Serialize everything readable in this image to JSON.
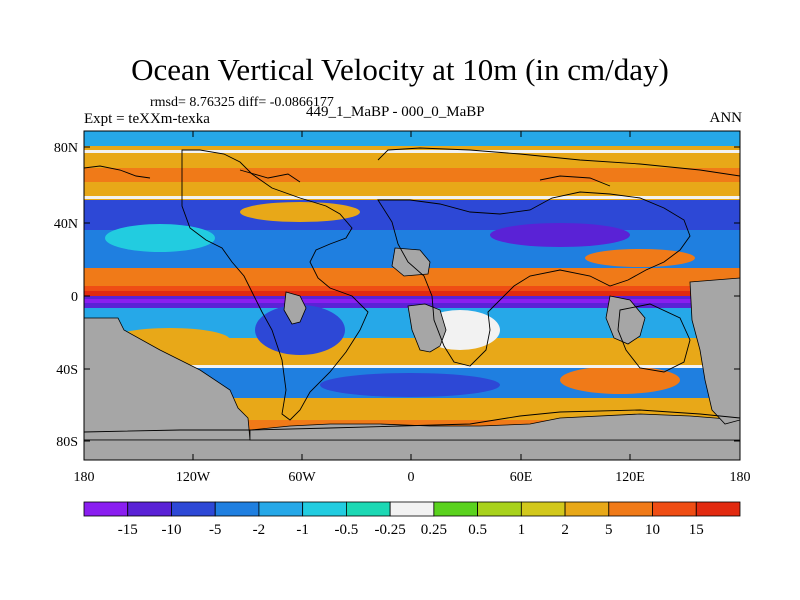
{
  "title": "Ocean Vertical Velocity at 10m (in cm/day)",
  "rmsd_line": "rmsd= 8.76325 diff= -0.0866177",
  "expt_line": "Expt = teXXm-texka",
  "diff_line": "449_1_MaBP - 000_0_MaBP",
  "season": "ANN",
  "colors": {
    "land": "#a6a6a6",
    "coast": "#000000",
    "palette": [
      "#8a1ef0",
      "#5a22d6",
      "#2d48d6",
      "#1f7fe0",
      "#26a8e8",
      "#22cce0",
      "#1cd8b4",
      "#f2f2f2",
      "#5ad21e",
      "#a8d21c",
      "#d2c81c",
      "#e8a818",
      "#f07a18",
      "#ef4d14",
      "#e22a10"
    ]
  },
  "map": {
    "lat_labels": [
      "80N",
      "40N",
      "0",
      "40S",
      "80S"
    ],
    "lon_labels": [
      "180",
      "120W",
      "60W",
      "0",
      "60E",
      "120E",
      "180"
    ]
  },
  "colorbar": {
    "labels": [
      "-15",
      "-10",
      "-5",
      "-2",
      "-1",
      "-0.5",
      "-0.25",
      "0.25",
      "0.5",
      "1",
      "2",
      "5",
      "10",
      "15"
    ]
  }
}
